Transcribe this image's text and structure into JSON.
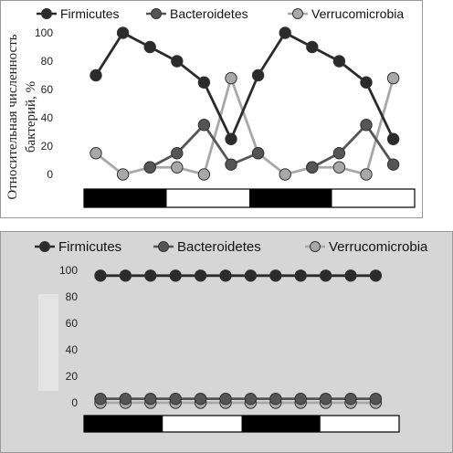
{
  "y_axis_label_line1": "Относительная численность",
  "y_axis_label_line2": "бактерий, %",
  "colors": {
    "firmicutes": "#2b2b2b",
    "bacteroidetes": "#555555",
    "verrucomicrobia": "#a8a8a8",
    "panel_bottom_bg": "#d6d6d6",
    "light_period": "#ffffff",
    "dark_period": "#000000"
  },
  "chart_data": [
    {
      "type": "line",
      "x": [
        1,
        2,
        3,
        4,
        5,
        6,
        7,
        8,
        9,
        10,
        11,
        12
      ],
      "yticks": [
        0,
        20,
        40,
        60,
        80,
        100
      ],
      "ylim": [
        0,
        100
      ],
      "series": [
        {
          "name": "Firmicutes",
          "values": [
            70,
            100,
            90,
            80,
            65,
            25,
            70,
            100,
            90,
            80,
            65,
            25
          ]
        },
        {
          "name": "Bacteroidetes",
          "values": [
            null,
            null,
            5,
            15,
            35,
            7,
            15,
            null,
            5,
            15,
            35,
            7
          ]
        },
        {
          "name": "Verrucomicrobia",
          "values": [
            15,
            0,
            5,
            5,
            0,
            68,
            15,
            0,
            5,
            5,
            0,
            68
          ]
        }
      ],
      "light_dark_bar": [
        "dark",
        "dark",
        "dark",
        "light",
        "light",
        "light",
        "dark",
        "dark",
        "dark",
        "light",
        "light",
        "light"
      ],
      "legend_position": "top",
      "grid": false
    },
    {
      "type": "line",
      "x": [
        1,
        2,
        3,
        4,
        5,
        6,
        7,
        8,
        9,
        10,
        11,
        12
      ],
      "yticks": [
        0,
        20,
        40,
        60,
        80,
        100
      ],
      "ylim": [
        0,
        100
      ],
      "series": [
        {
          "name": "Firmicutes",
          "values": [
            96,
            96,
            96,
            96,
            96,
            96,
            96,
            96,
            96,
            96,
            96,
            96
          ]
        },
        {
          "name": "Bacteroidetes",
          "values": [
            3,
            3,
            3,
            3,
            3,
            3,
            3,
            3,
            3,
            3,
            3,
            3
          ]
        },
        {
          "name": "Verrucomicrobia",
          "values": [
            0,
            0,
            0,
            0,
            0,
            0,
            0,
            0,
            0,
            0,
            0,
            0
          ]
        }
      ],
      "light_dark_bar": [
        "dark",
        "dark",
        "dark",
        "light",
        "light",
        "light",
        "dark",
        "dark",
        "dark",
        "light",
        "light",
        "light"
      ],
      "legend_position": "top",
      "grid": false
    }
  ]
}
